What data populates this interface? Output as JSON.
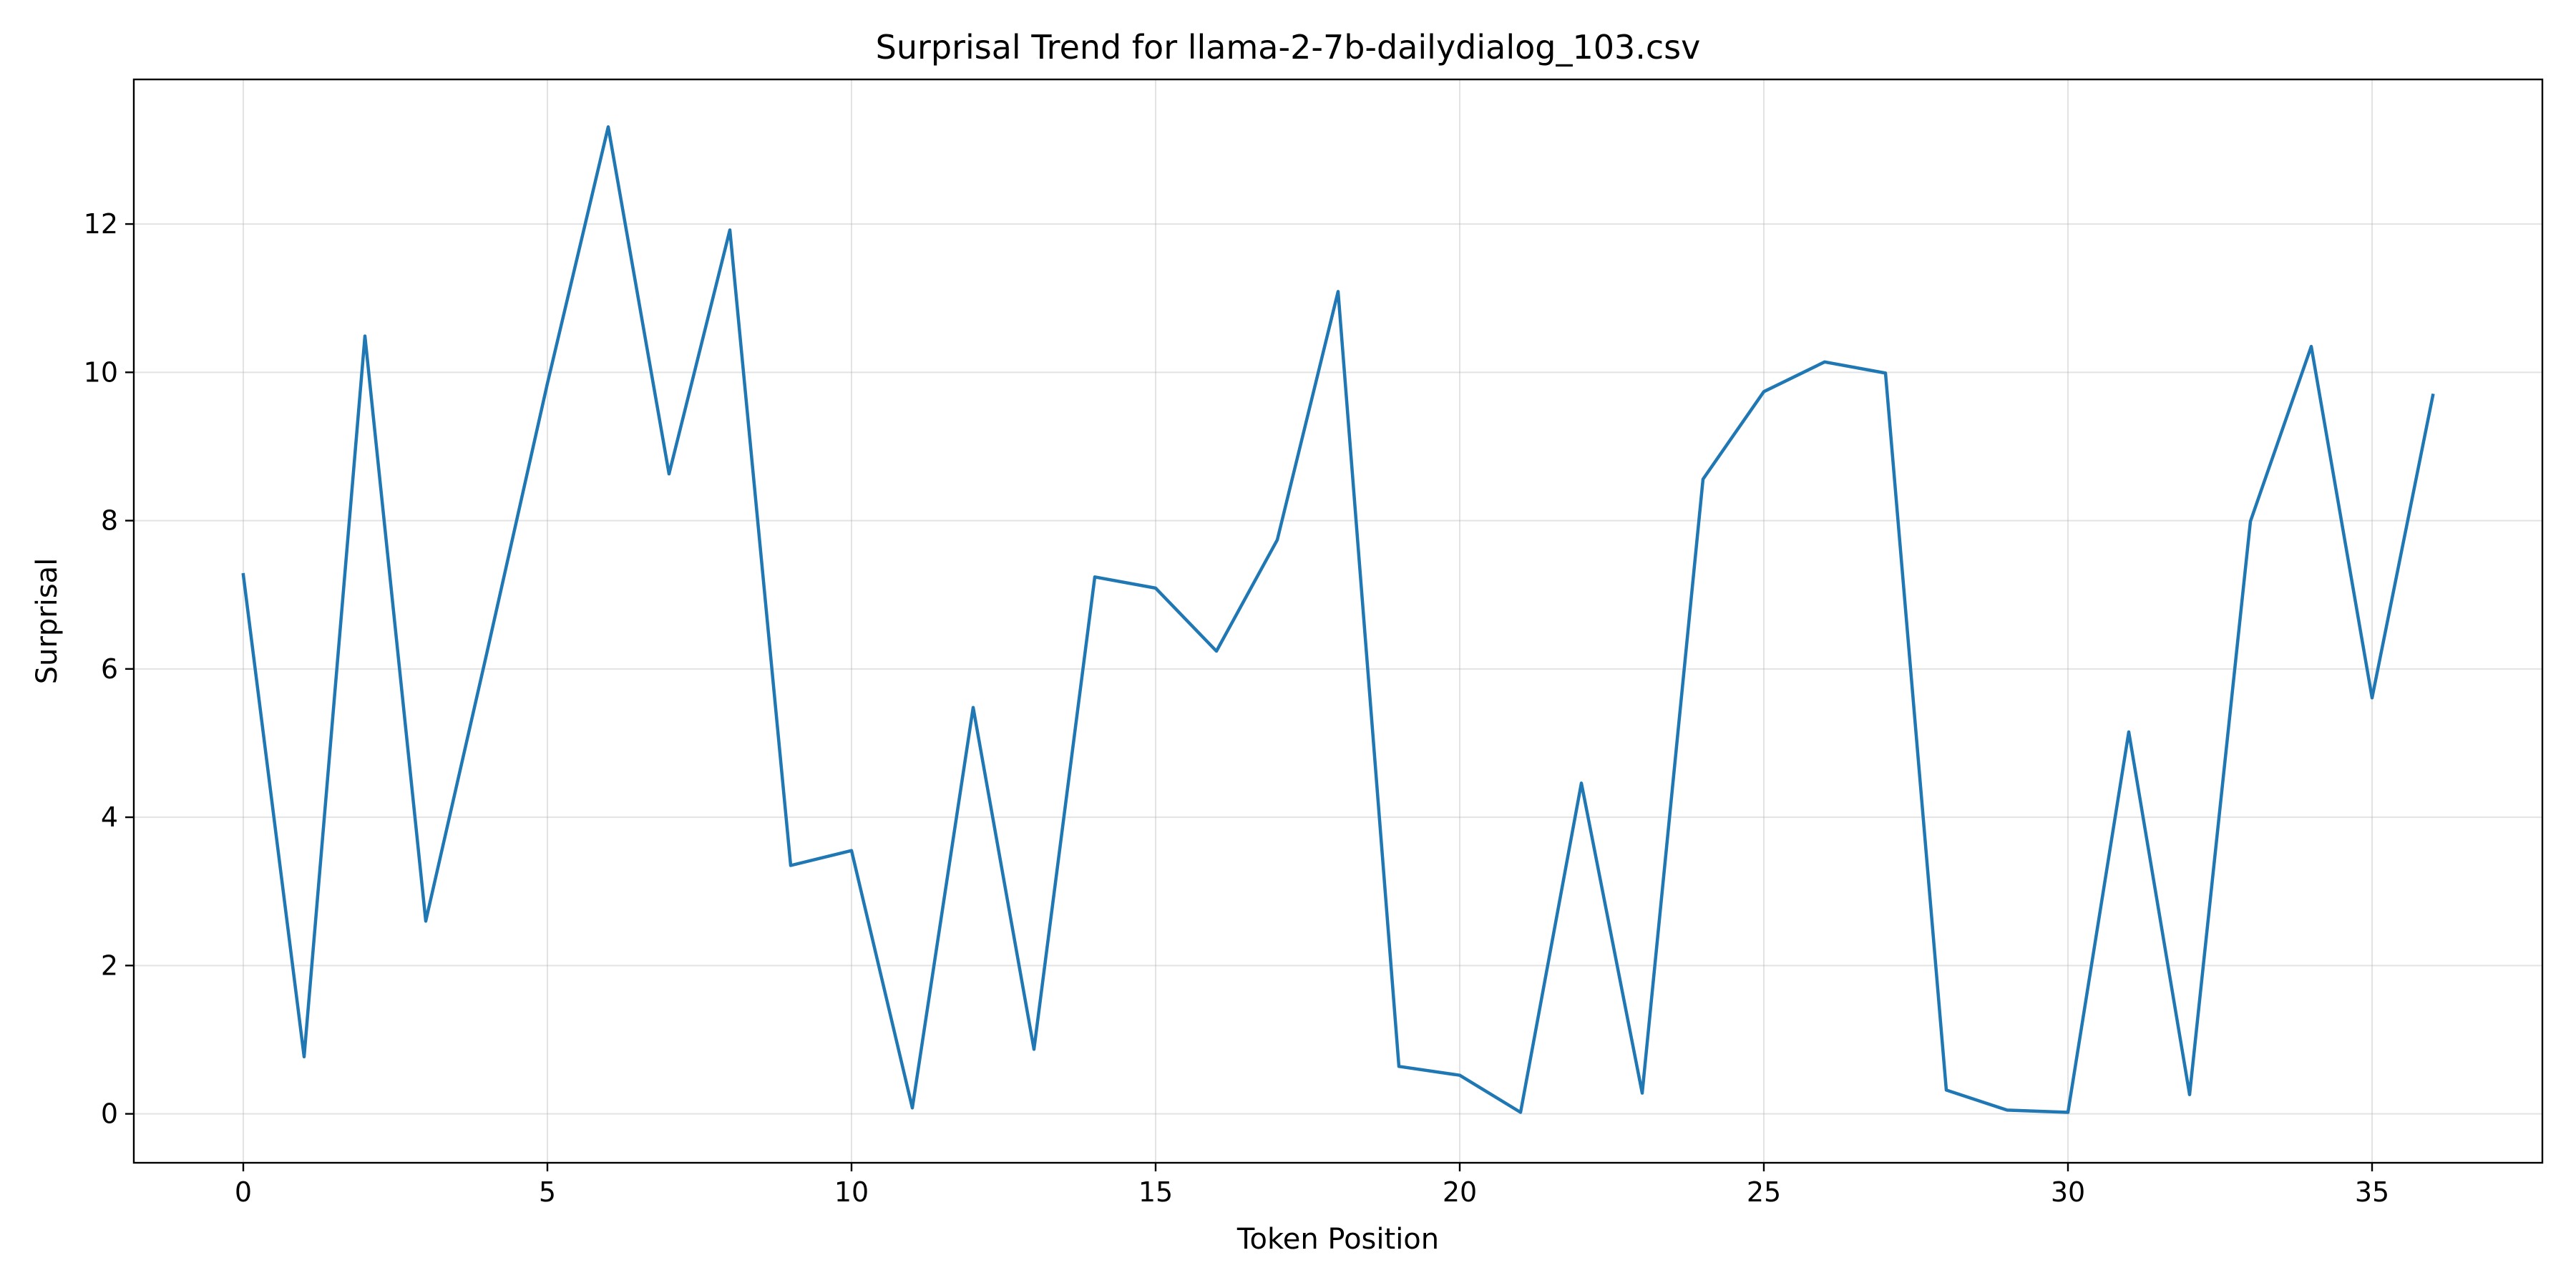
{
  "chart_data": {
    "type": "line",
    "title": "Surprisal Trend for llama-2-7b-dailydialog_103.csv",
    "xlabel": "Token Position",
    "ylabel": "Surprisal",
    "xlim": [
      -1.8,
      37.8
    ],
    "ylim": [
      -0.66,
      13.95
    ],
    "xticks": [
      0,
      5,
      10,
      15,
      20,
      25,
      30,
      35
    ],
    "yticks": [
      0,
      2,
      4,
      6,
      8,
      10,
      12
    ],
    "grid": true,
    "series": [
      {
        "color": "#1f77b4",
        "x": [
          0,
          1,
          2,
          3,
          4,
          5,
          6,
          7,
          8,
          9,
          10,
          11,
          12,
          13,
          14,
          15,
          16,
          17,
          18,
          19,
          20,
          21,
          22,
          23,
          24,
          25,
          26,
          27,
          28,
          29,
          30,
          31,
          32,
          33,
          34,
          35,
          36
        ],
        "values": [
          7.27,
          0.77,
          10.49,
          2.6,
          6.2,
          9.85,
          13.31,
          8.63,
          11.92,
          3.35,
          3.55,
          0.08,
          5.48,
          0.87,
          7.24,
          7.09,
          6.24,
          7.74,
          11.09,
          0.64,
          0.52,
          0.02,
          4.46,
          0.28,
          8.56,
          9.74,
          10.14,
          9.99,
          0.32,
          0.05,
          0.02,
          5.15,
          0.26,
          7.99,
          10.35,
          5.61,
          9.69
        ]
      }
    ]
  }
}
